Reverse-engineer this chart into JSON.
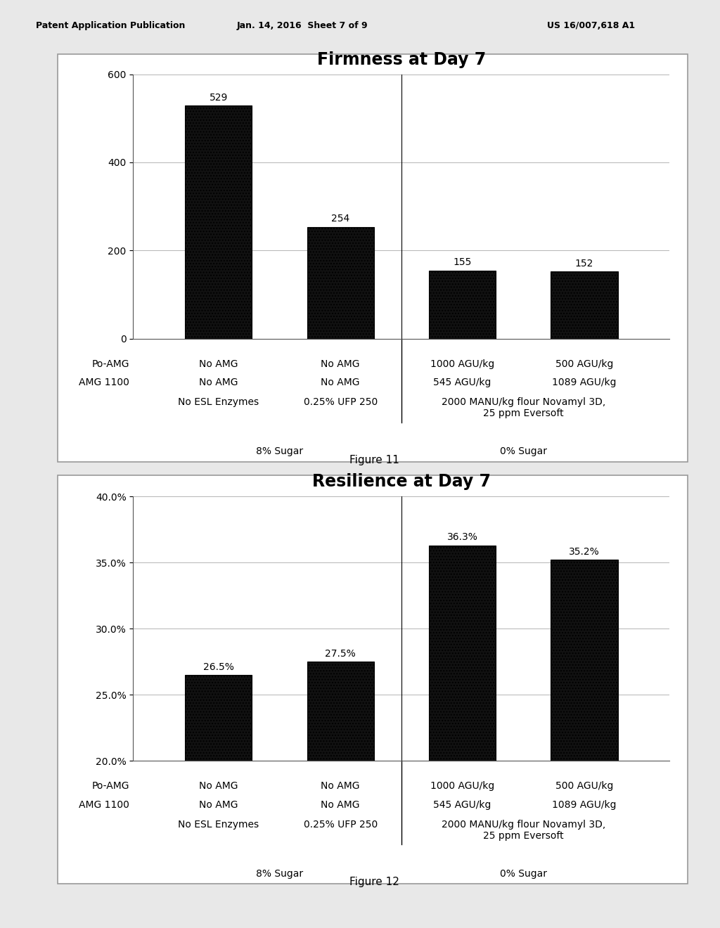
{
  "header_left": "Patent Application Publication",
  "header_center": "Jan. 14, 2016  Sheet 7 of 9",
  "header_right": "US 16/007,618 A1",
  "fig1_title": "Firmness at Day 7",
  "fig1_values": [
    529,
    254,
    155,
    152
  ],
  "fig1_ylim": [
    0,
    600
  ],
  "fig1_yticks": [
    0,
    200,
    400,
    600
  ],
  "fig1_caption": "Figure 11",
  "fig2_title": "Resilience at Day 7",
  "fig2_values": [
    26.5,
    27.5,
    36.3,
    35.2
  ],
  "fig2_value_labels": [
    "26.5%",
    "27.5%",
    "36.3%",
    "35.2%"
  ],
  "fig2_ylim": [
    20.0,
    40.0
  ],
  "fig2_yticks": [
    20.0,
    25.0,
    30.0,
    35.0,
    40.0
  ],
  "fig2_ytick_labels": [
    "20.0%",
    "25.0%",
    "30.0%",
    "35.0%",
    "40.0%"
  ],
  "fig2_caption": "Figure 12",
  "bar_color": "#111111",
  "bar_edgecolor": "#000000",
  "x_labels_line1": [
    "No AMG",
    "No AMG",
    "1000 AGU/kg",
    "500 AGU/kg"
  ],
  "x_labels_line2": [
    "No AMG",
    "No AMG",
    "545 AGU/kg",
    "1089 AGU/kg"
  ],
  "x_labels_line3_01": [
    "No ESL Enzymes",
    "0.25% UFP 250"
  ],
  "x_labels_line3_23": "2000 MANU/kg flour Novamyl 3D,\n25 ppm Eversoft",
  "po_amg_label": "Po-AMG",
  "amg1100_label": "AMG 1100",
  "group_label_8": "8% Sugar",
  "group_label_0": "0% Sugar",
  "bg_color": "#e8e8e8",
  "plot_bg_color": "#ffffff",
  "border_color": "#999999",
  "title_fontsize": 17,
  "tick_fontsize": 10,
  "label_fontsize": 10,
  "bar_label_fontsize": 10,
  "caption_fontsize": 11,
  "header_fontsize": 9
}
